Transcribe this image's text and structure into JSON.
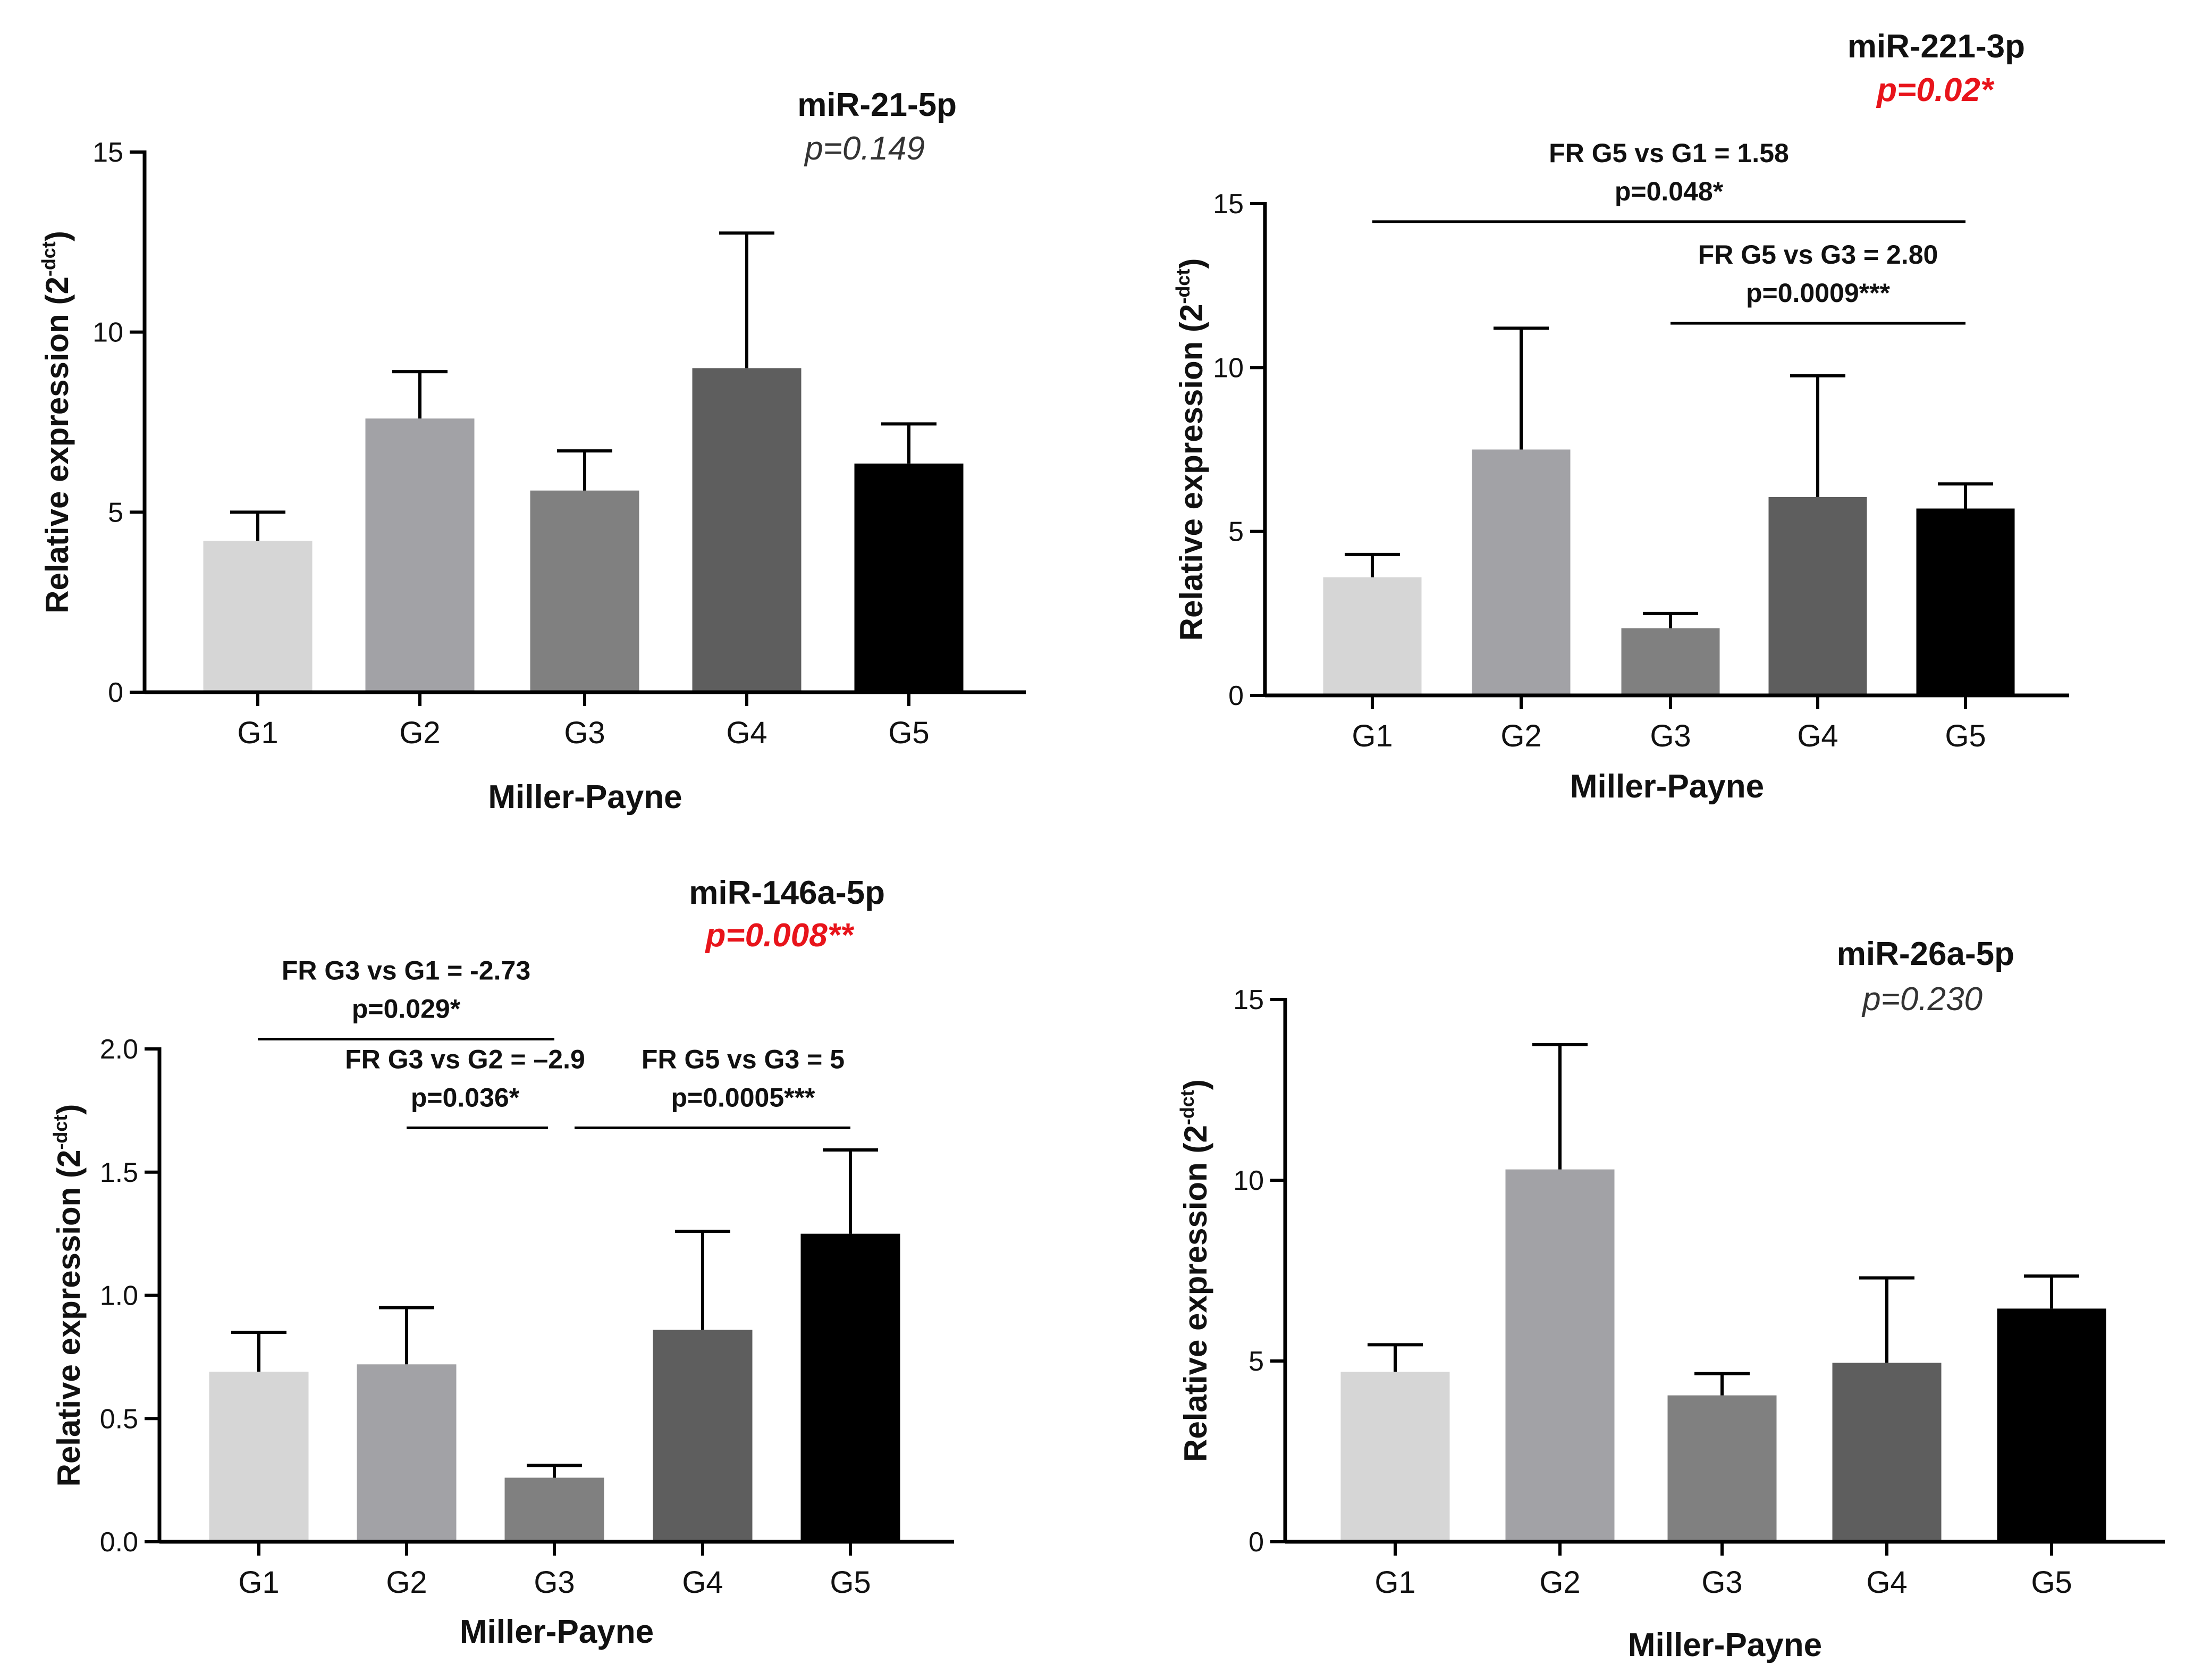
{
  "chart_data": [
    {
      "type": "bar",
      "title": "miR-21-5p",
      "pvalue": "p=0.149",
      "pvalue_significant": false,
      "xlabel": "Miller-Payne",
      "ylabel": "Relative expression (2",
      "ylabel_superscript": "-dct",
      "ylabel_close": ")",
      "categories": [
        "G1",
        "G2",
        "G3",
        "G4",
        "G5"
      ],
      "values": [
        4.2,
        7.6,
        5.6,
        9.0,
        6.35
      ],
      "errors": [
        0.8,
        1.3,
        1.1,
        3.75,
        1.1
      ],
      "ylim": [
        0,
        15
      ],
      "yticks": [
        0,
        5,
        10,
        15
      ],
      "ytick_labels": [
        "0",
        "5",
        "10",
        "15"
      ],
      "annotations": []
    },
    {
      "type": "bar",
      "title": "miR-221-3p",
      "pvalue": "p=0.02*",
      "pvalue_significant": true,
      "xlabel": "Miller-Payne",
      "ylabel": "Relative expression (2",
      "ylabel_superscript": "-dct",
      "ylabel_close": ")",
      "categories": [
        "G1",
        "G2",
        "G3",
        "G4",
        "G5"
      ],
      "values": [
        3.6,
        7.5,
        2.05,
        6.05,
        5.7
      ],
      "errors": [
        0.7,
        3.7,
        0.45,
        3.7,
        0.75
      ],
      "ylim": [
        0,
        15
      ],
      "yticks": [
        0,
        5,
        10,
        15
      ],
      "ytick_labels": [
        "0",
        "5",
        "10",
        "15"
      ],
      "annotations": [
        {
          "line1": "FR G5 vs G1 = 1.58",
          "line2": "p=0.048*",
          "from": "G1",
          "to": "G5",
          "level": 14.45
        },
        {
          "line1": "FR G5 vs G3 = 2.80",
          "line2": "p=0.0009***",
          "from": "G3",
          "to": "G5",
          "level": 11.35
        }
      ]
    },
    {
      "type": "bar",
      "title": "miR-146a-5p",
      "pvalue": "p=0.008**",
      "pvalue_significant": true,
      "xlabel": "Miller-Payne",
      "ylabel": "Relative expression (2",
      "ylabel_superscript": "-dct",
      "ylabel_close": ")",
      "categories": [
        "G1",
        "G2",
        "G3",
        "G4",
        "G5"
      ],
      "values": [
        0.69,
        0.72,
        0.26,
        0.86,
        1.25
      ],
      "errors": [
        0.16,
        0.23,
        0.05,
        0.4,
        0.34
      ],
      "ylim": [
        0,
        2.0
      ],
      "yticks": [
        0,
        0.5,
        1.0,
        1.5,
        2.0
      ],
      "ytick_labels": [
        "0.0",
        "0.5",
        "1.0",
        "1.5",
        "2.0"
      ],
      "annotations": [
        {
          "line1": "FR G3 vs G1 = -2.73",
          "line2": "p=0.029*",
          "from": "G1",
          "to": "G3",
          "level": 2.04
        },
        {
          "line1": "FR G3 vs G2 = –2.9",
          "line2": "p=0.036*",
          "from": "G2",
          "to": "G3",
          "level": 1.68
        },
        {
          "line1": "FR G5 vs G3 = 5",
          "line2": "p=0.0005***",
          "from": "G3",
          "to": "G5",
          "level": 1.68
        }
      ]
    },
    {
      "type": "bar",
      "title": "miR-26a-5p",
      "pvalue": "p=0.230",
      "pvalue_significant": false,
      "xlabel": "Miller-Payne",
      "ylabel": "Relative expression (2",
      "ylabel_superscript": "-dct",
      "ylabel_close": ")",
      "categories": [
        "G1",
        "G2",
        "G3",
        "G4",
        "G5"
      ],
      "values": [
        4.7,
        10.3,
        4.05,
        4.95,
        6.45
      ],
      "errors": [
        0.75,
        3.45,
        0.6,
        2.35,
        0.9
      ],
      "ylim": [
        0,
        15
      ],
      "yticks": [
        0,
        5,
        10,
        15
      ],
      "ytick_labels": [
        "0",
        "5",
        "10",
        "15"
      ],
      "annotations": []
    }
  ],
  "bar_colors": [
    "#d6d6d6",
    "#a2a2a6",
    "#808080",
    "#5e5e5e",
    "#000000"
  ]
}
